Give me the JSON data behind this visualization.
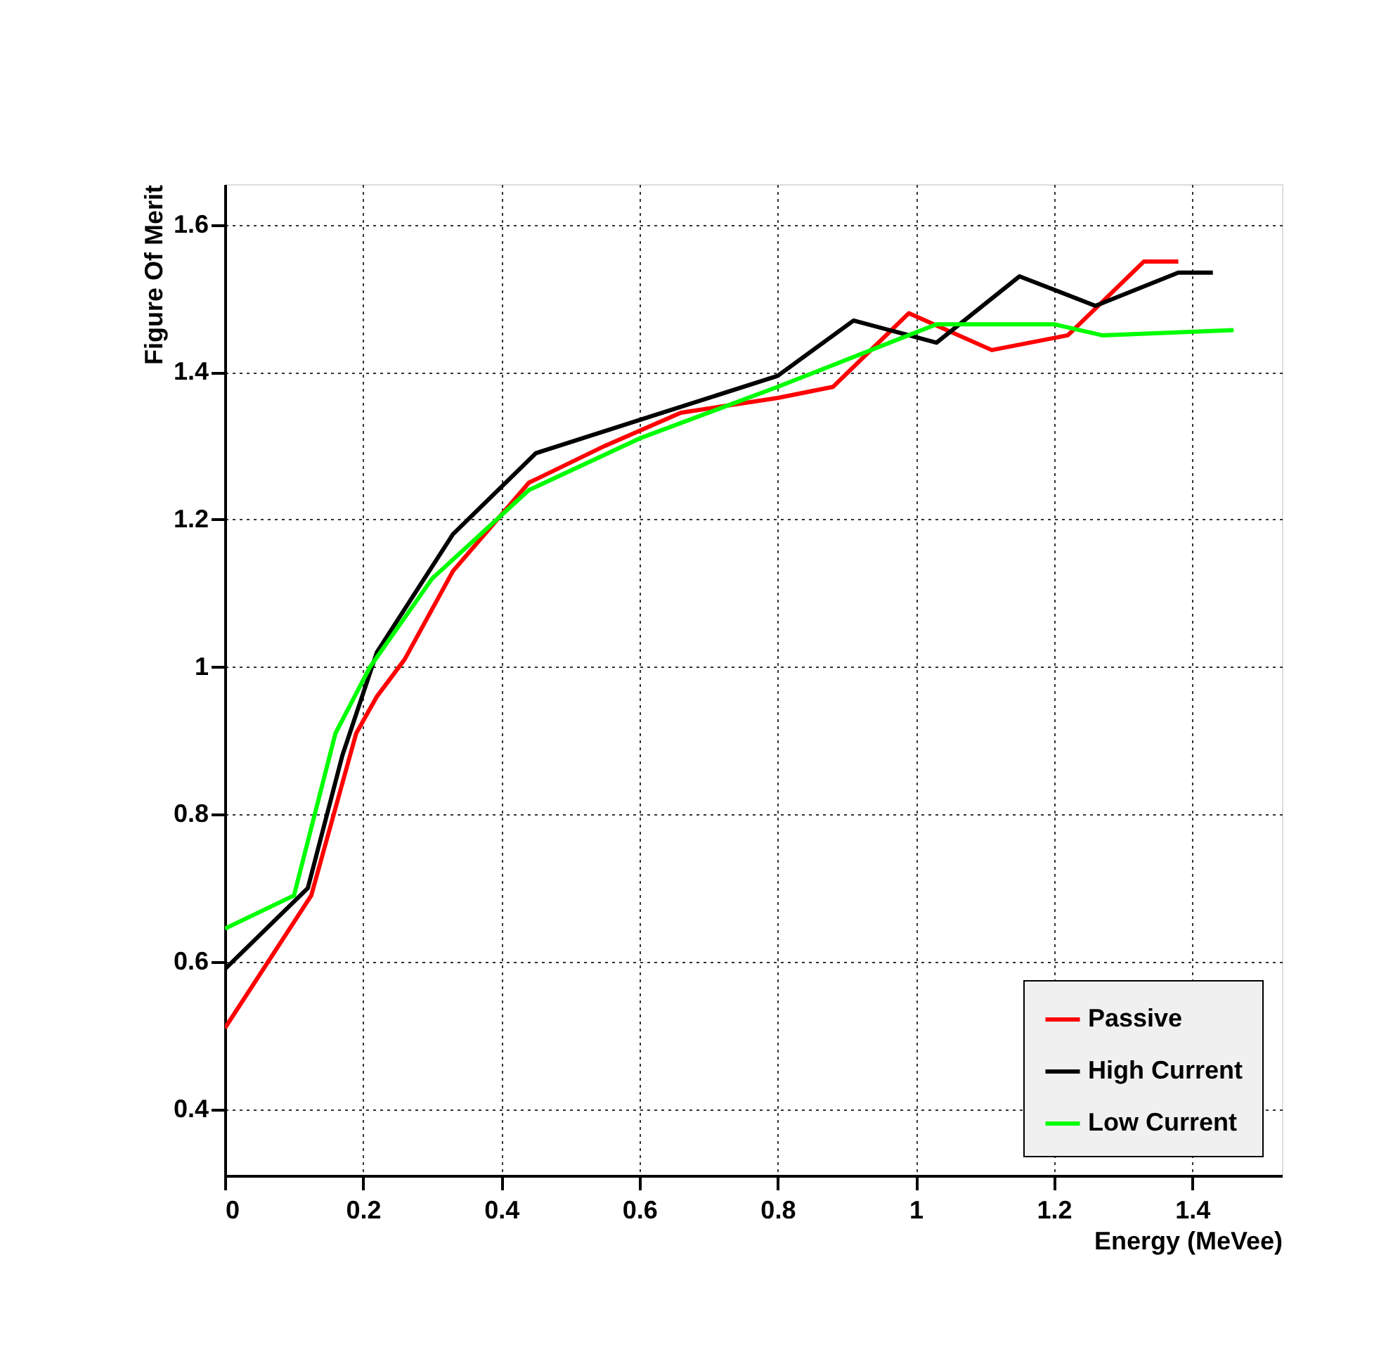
{
  "chart_data": {
    "type": "line",
    "xlabel": "Energy (MeVee)",
    "ylabel": "Figure Of Merit",
    "xlim": [
      0,
      1.53
    ],
    "ylim": [
      0.31,
      1.655
    ],
    "xticks": [
      0,
      0.2,
      0.4,
      0.6,
      0.8,
      1,
      1.2,
      1.4
    ],
    "yticks": [
      0.4,
      0.6,
      0.8,
      1,
      1.2,
      1.4,
      1.6
    ],
    "grid": true,
    "legend": "bottom right",
    "line_style": "solid",
    "marker": "none",
    "series": [
      {
        "name": "Passive",
        "color": "#ff0000",
        "x": [
          0,
          0.125,
          0.19,
          0.22,
          0.26,
          0.33,
          0.44,
          0.55,
          0.66,
          0.8,
          0.88,
          0.99,
          1.11,
          1.22,
          1.33,
          1.38
        ],
        "values": [
          0.51,
          0.69,
          0.91,
          0.96,
          1.01,
          1.13,
          1.25,
          1.3,
          1.345,
          1.365,
          1.38,
          1.48,
          1.43,
          1.45,
          1.55,
          1.55
        ]
      },
      {
        "name": "High Current",
        "color": "#000000",
        "x": [
          0,
          0.12,
          0.17,
          0.22,
          0.33,
          0.45,
          0.6,
          0.8,
          0.91,
          1.03,
          1.15,
          1.26,
          1.38,
          1.43
        ],
        "values": [
          0.59,
          0.7,
          0.88,
          1.02,
          1.18,
          1.29,
          1.335,
          1.395,
          1.47,
          1.44,
          1.53,
          1.49,
          1.535,
          1.535
        ]
      },
      {
        "name": "Low Current",
        "color": "#00ff00",
        "x": [
          0,
          0.1,
          0.16,
          0.21,
          0.3,
          0.44,
          0.6,
          0.8,
          1.03,
          1.2,
          1.27,
          1.46
        ],
        "values": [
          0.645,
          0.69,
          0.91,
          1.0,
          1.12,
          1.24,
          1.31,
          1.38,
          1.465,
          1.465,
          1.45,
          1.457
        ]
      }
    ]
  }
}
